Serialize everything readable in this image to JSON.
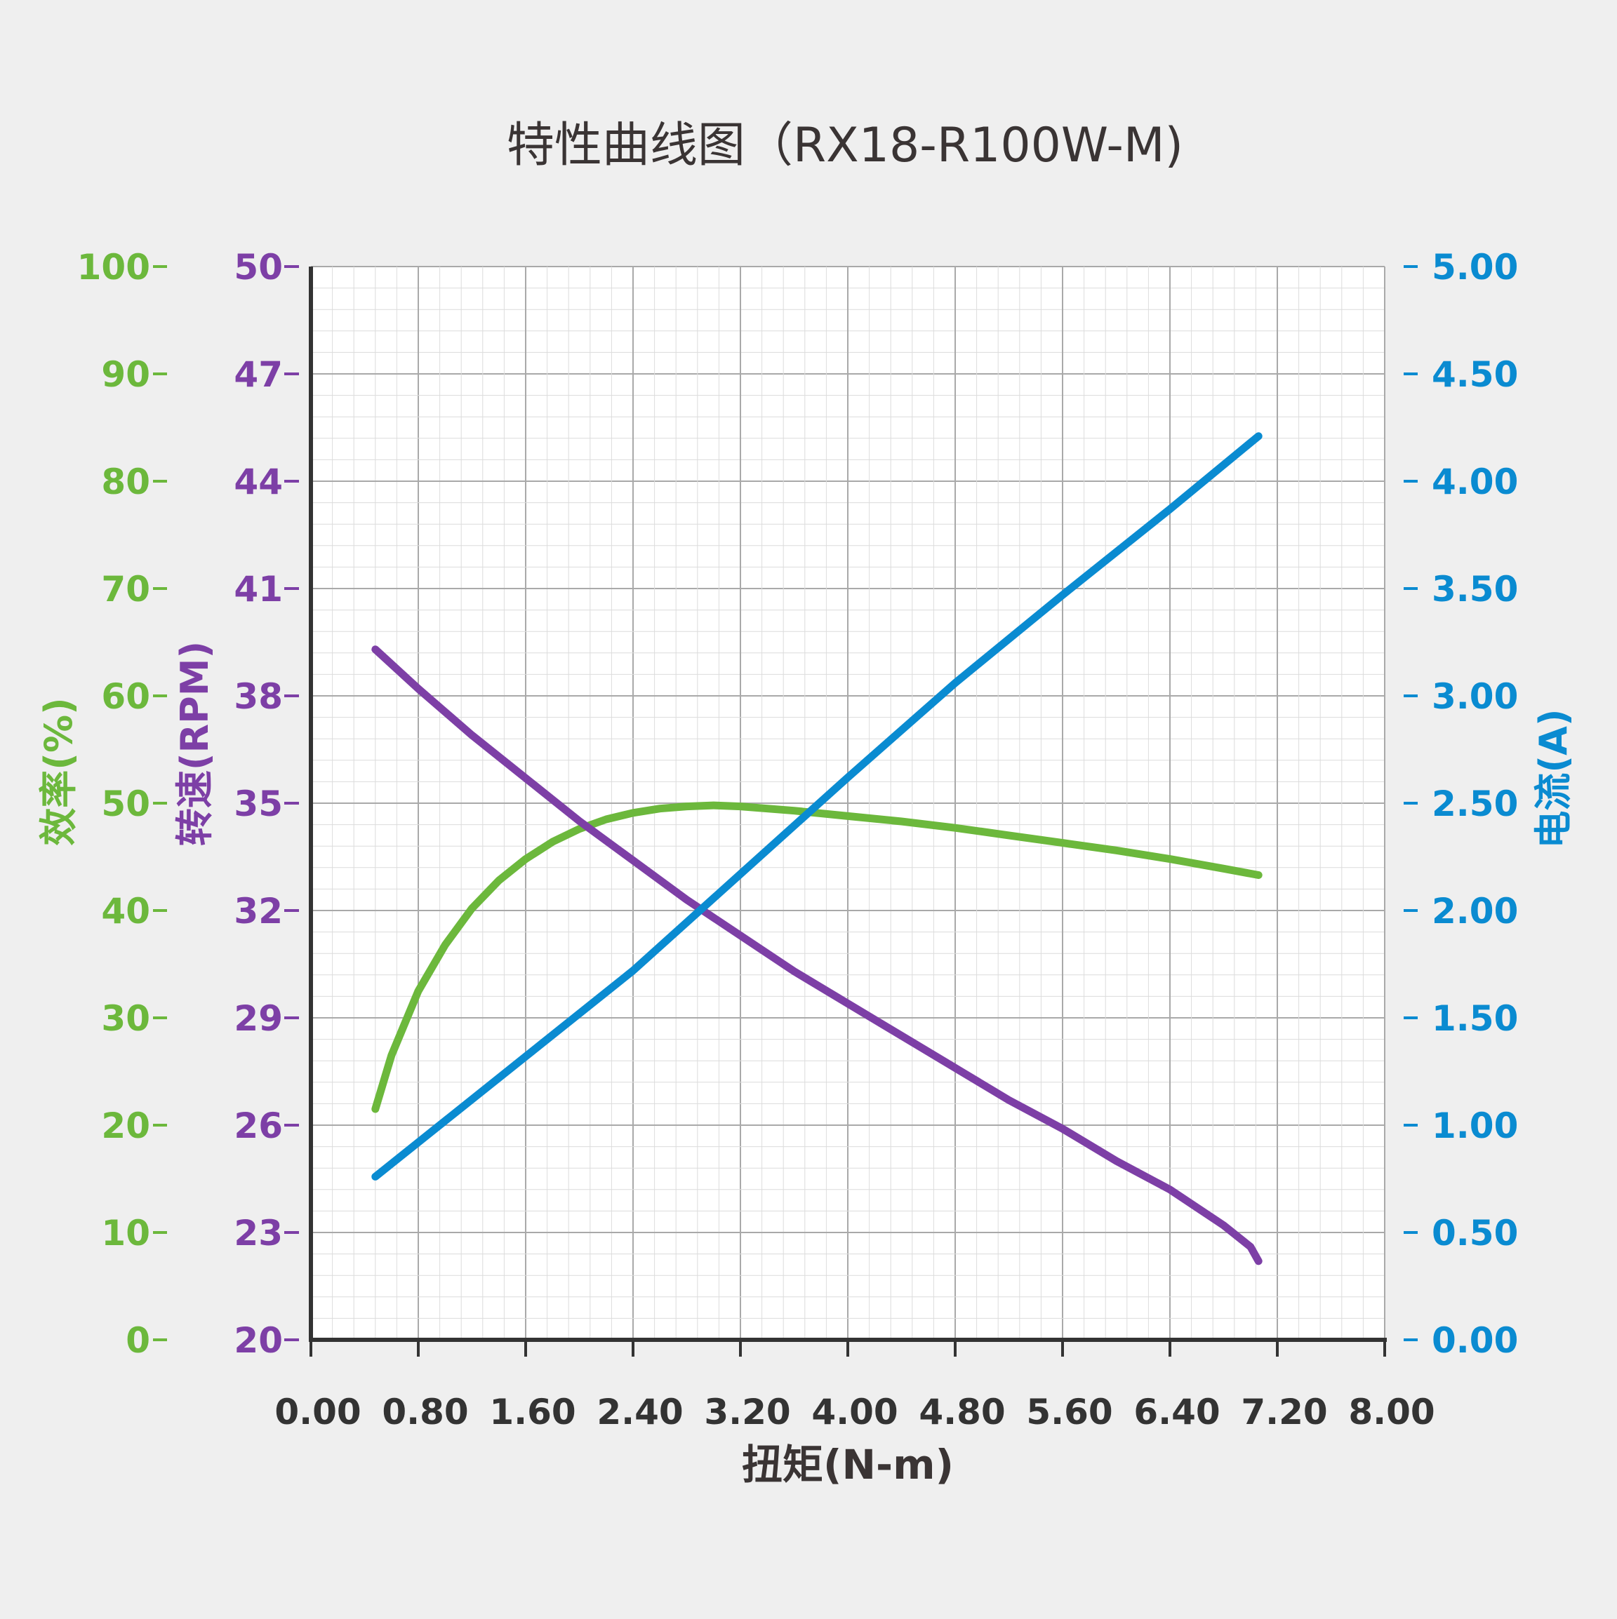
{
  "chart_data": {
    "type": "line",
    "title": "特性曲线图（RX18-R100W-M)",
    "xlabel": "扭矩(N-m)",
    "xlim": [
      0,
      8
    ],
    "xticks": [
      "0.00",
      "0.80",
      "1.60",
      "2.40",
      "3.20",
      "4.00",
      "4.80",
      "5.60",
      "6.40",
      "7.20",
      "8.00"
    ],
    "grid": true,
    "axes": {
      "efficiency": {
        "label": "效率(%)",
        "side": "left-outer",
        "color": "#6cb83c",
        "ylim": [
          0,
          100
        ],
        "ticks": [
          "0",
          "10",
          "20",
          "30",
          "40",
          "50",
          "60",
          "70",
          "80",
          "90",
          "100"
        ]
      },
      "speed": {
        "label": "转速(RPM)",
        "side": "left-inner",
        "color": "#7d3fa6",
        "ylim": [
          20,
          50
        ],
        "ticks": [
          "20",
          "23",
          "26",
          "29",
          "32",
          "35",
          "38",
          "41",
          "44",
          "47",
          "50"
        ]
      },
      "current": {
        "label": "电流(A)",
        "side": "right",
        "color": "#0a8bd1",
        "ylim": [
          0,
          5
        ],
        "ticks": [
          "0.00",
          "0.50",
          "1.00",
          "1.50",
          "2.00",
          "2.50",
          "3.00",
          "3.50",
          "4.00",
          "4.50",
          "5.00"
        ]
      }
    },
    "series": [
      {
        "axis": "efficiency",
        "color": "#6cb83c",
        "x": [
          0.48,
          0.6,
          0.8,
          1.0,
          1.2,
          1.4,
          1.6,
          1.8,
          2.0,
          2.2,
          2.4,
          2.6,
          2.8,
          3.0,
          3.2,
          3.4,
          3.6,
          4.0,
          4.4,
          4.8,
          5.2,
          5.6,
          6.0,
          6.4,
          6.8,
          7.06
        ],
        "y": [
          21.5,
          26.5,
          32.5,
          36.8,
          40.2,
          42.8,
          44.8,
          46.4,
          47.6,
          48.5,
          49.1,
          49.5,
          49.7,
          49.8,
          49.7,
          49.5,
          49.3,
          48.8,
          48.3,
          47.7,
          47.0,
          46.3,
          45.6,
          44.8,
          43.9,
          43.3
        ]
      },
      {
        "axis": "speed",
        "color": "#7d3fa6",
        "x": [
          0.48,
          0.8,
          1.2,
          1.6,
          2.0,
          2.4,
          2.8,
          3.2,
          3.6,
          4.0,
          4.4,
          4.8,
          5.2,
          5.6,
          6.0,
          6.4,
          6.8,
          7.0,
          7.06
        ],
        "y": [
          39.3,
          38.2,
          36.9,
          35.7,
          34.5,
          33.4,
          32.3,
          31.3,
          30.3,
          29.4,
          28.5,
          27.6,
          26.7,
          25.9,
          25.0,
          24.2,
          23.2,
          22.6,
          22.2
        ]
      },
      {
        "axis": "current",
        "color": "#0a8bd1",
        "x": [
          0.48,
          1.6,
          2.4,
          3.2,
          4.0,
          4.8,
          5.6,
          6.4,
          7.06
        ],
        "y": [
          0.76,
          1.32,
          1.72,
          2.17,
          2.62,
          3.06,
          3.47,
          3.87,
          4.21
        ]
      }
    ]
  }
}
